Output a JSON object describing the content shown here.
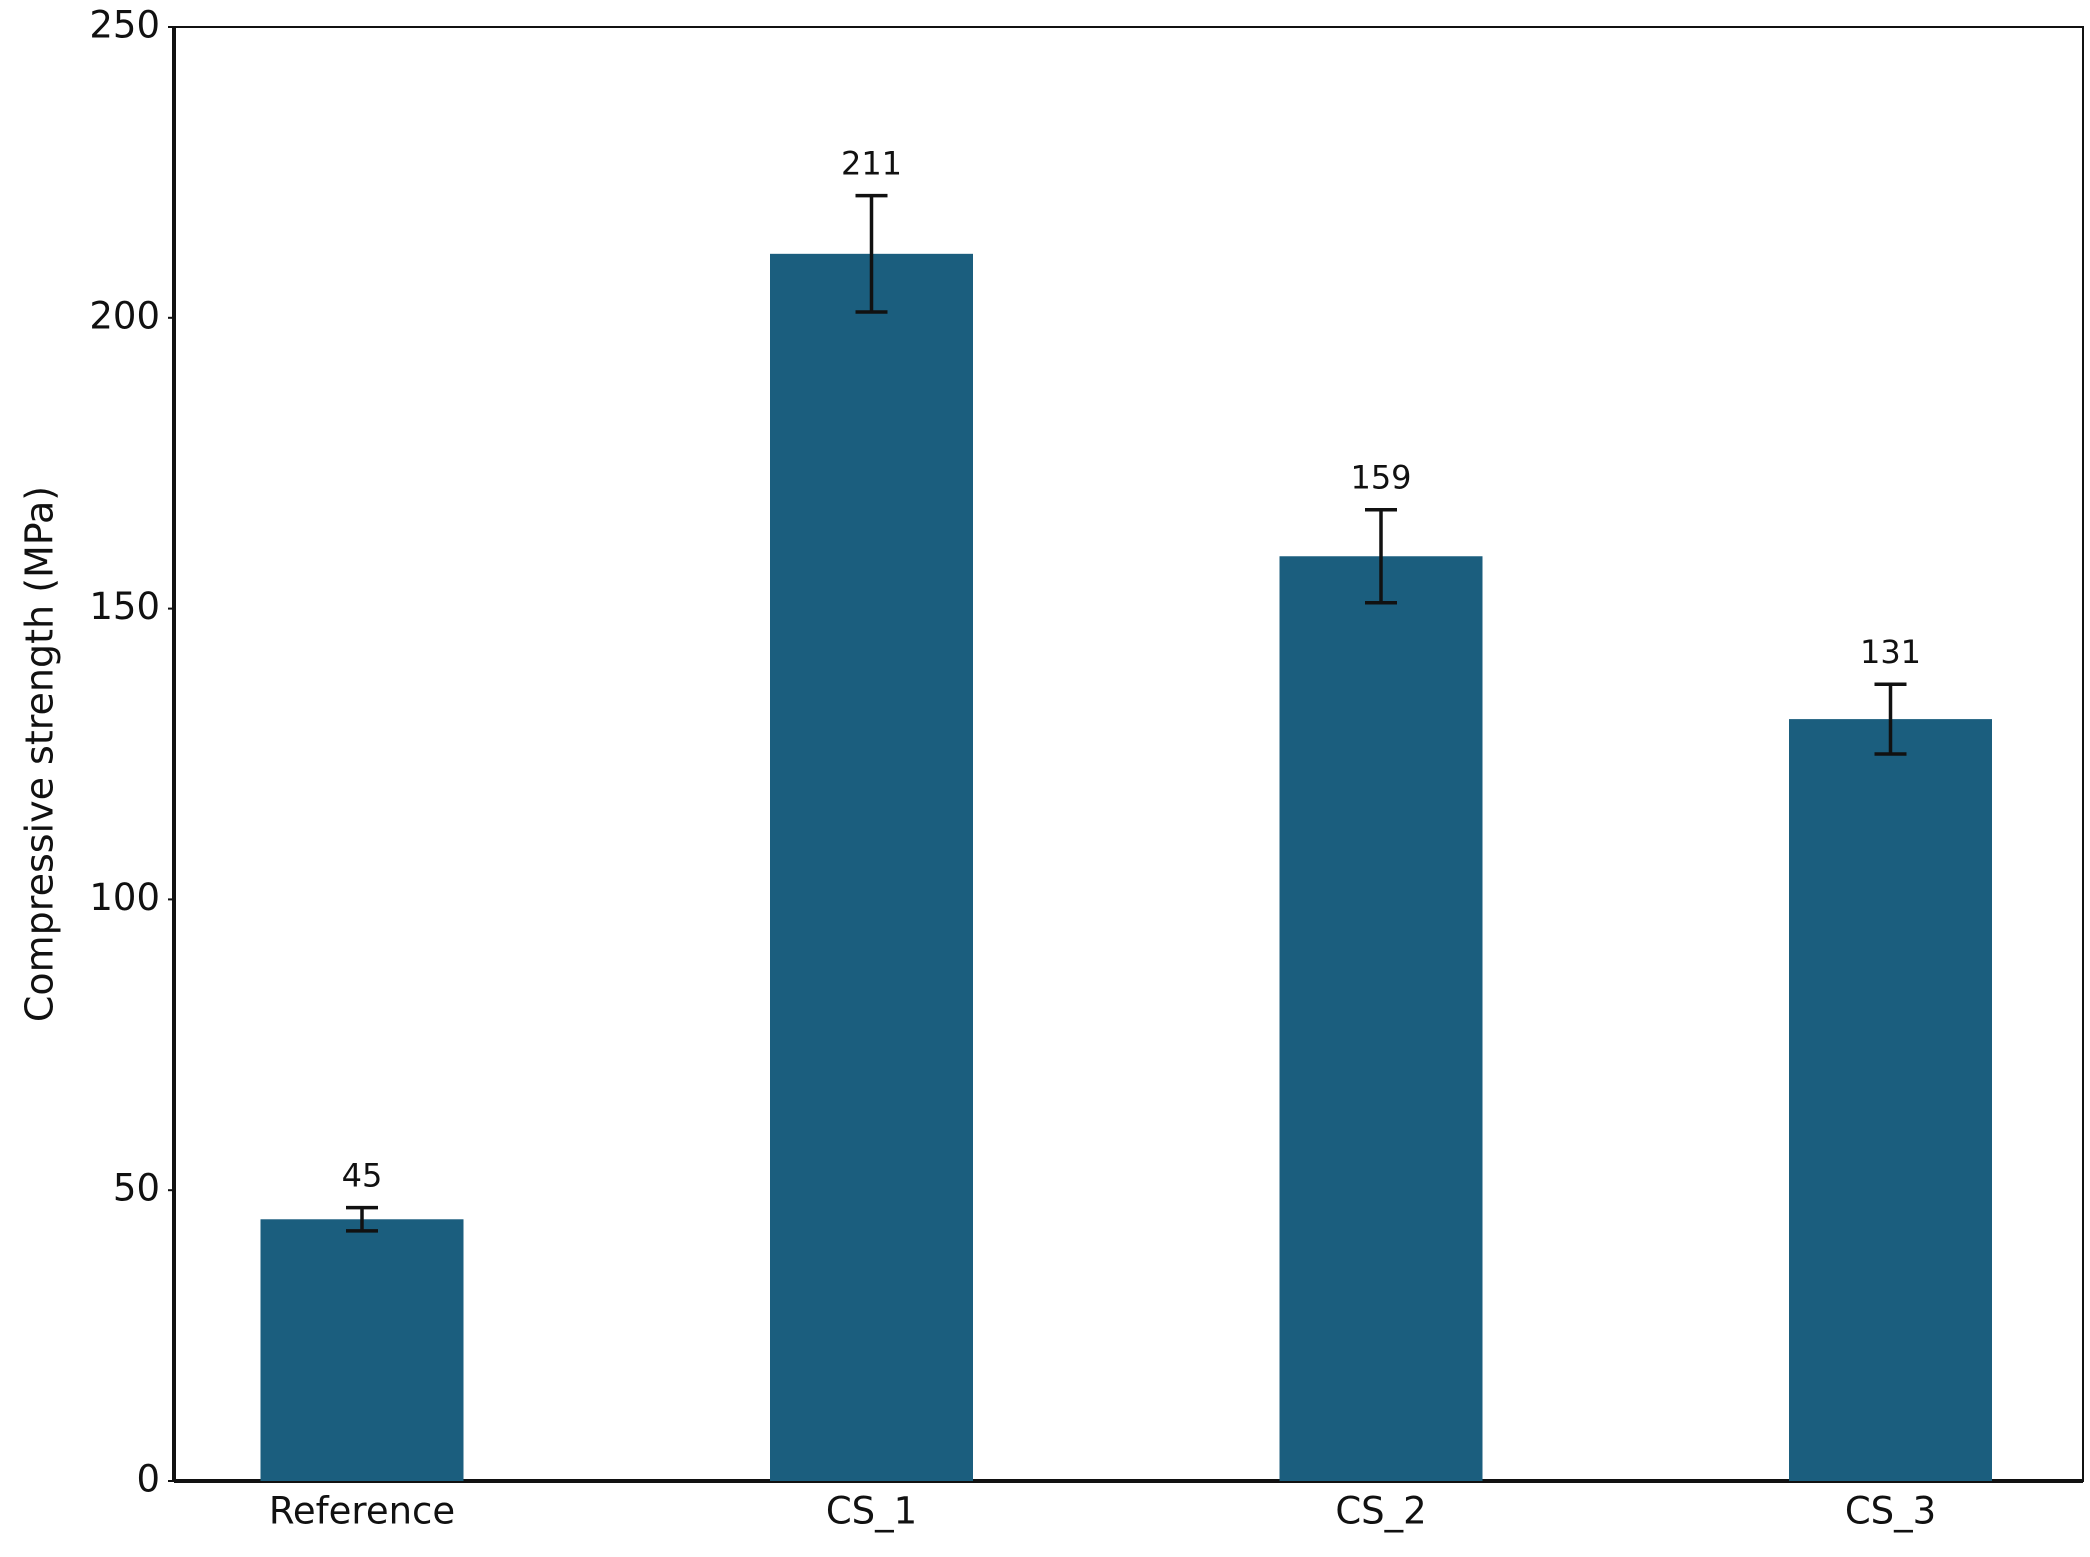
{
  "chart_data": {
    "type": "bar",
    "y_label": "Compressive strength (MPa)",
    "categories": [
      "Reference",
      "CS_1",
      "CS_2",
      "CS_3"
    ],
    "values": [
      45,
      211,
      159,
      131
    ],
    "errors": [
      2,
      10,
      8,
      6
    ],
    "color": "#1b5e7e",
    "ylim": [
      0,
      250
    ],
    "yticks": [
      0,
      50,
      100,
      150,
      200,
      250
    ],
    "grid": false
  }
}
